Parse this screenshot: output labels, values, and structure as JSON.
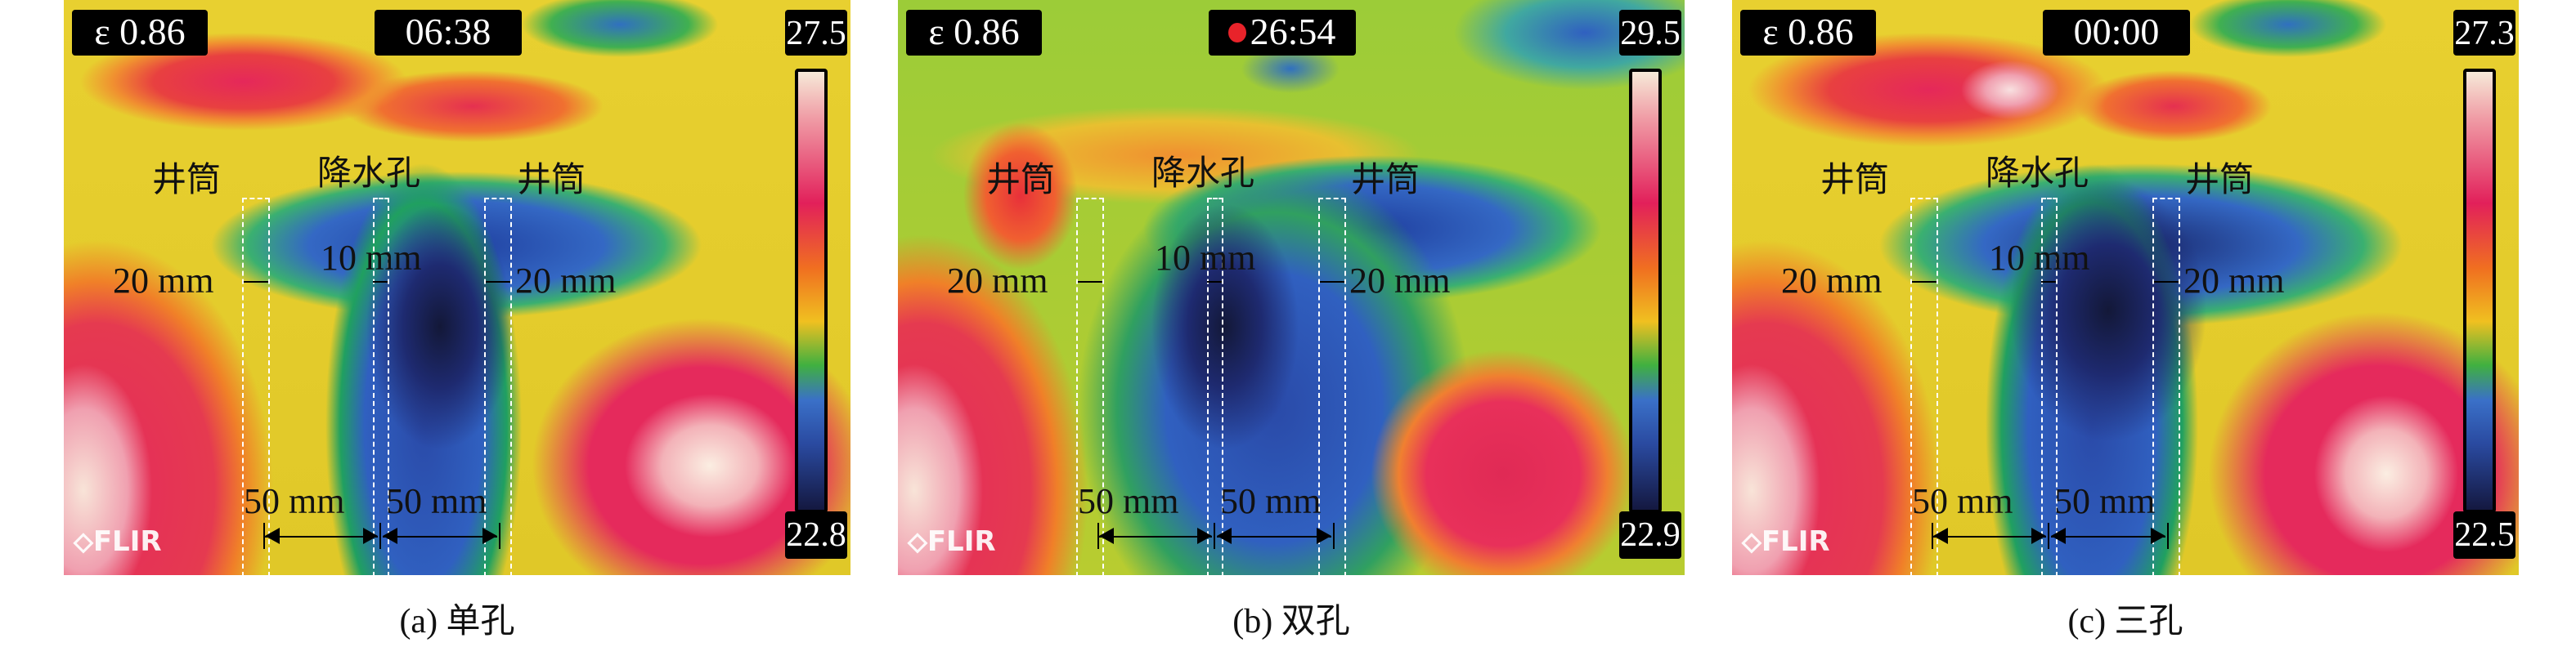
{
  "panels": [
    {
      "epsilon": "ε 0.86",
      "recording": false,
      "time": "06:38",
      "max_temp": "27.5",
      "min_temp": "22.8",
      "logo": "FLIR",
      "labels": {
        "well_left": "井筒",
        "drain_hole": "降水孔",
        "well_right": "井筒"
      },
      "dims": {
        "left_width": "20 mm",
        "center_width": "10 mm",
        "right_width": "20 mm",
        "spacing_left": "50 mm",
        "spacing_right": "50 mm"
      },
      "caption": "(a) 单孔"
    },
    {
      "epsilon": "ε 0.86",
      "recording": true,
      "time": "26:54",
      "max_temp": "29.5",
      "min_temp": "22.9",
      "logo": "FLIR",
      "labels": {
        "well_left": "井筒",
        "drain_hole": "降水孔",
        "well_right": "井筒"
      },
      "dims": {
        "left_width": "20 mm",
        "center_width": "10 mm",
        "right_width": "20 mm",
        "spacing_left": "50 mm",
        "spacing_right": "50 mm"
      },
      "caption": "(b) 双孔"
    },
    {
      "epsilon": "ε 0.86",
      "recording": false,
      "time": "00:00",
      "max_temp": "27.3",
      "min_temp": "22.5",
      "logo": "FLIR",
      "labels": {
        "well_left": "井筒",
        "drain_hole": "降水孔",
        "well_right": "井筒"
      },
      "dims": {
        "left_width": "20 mm",
        "center_width": "10 mm",
        "right_width": "20 mm",
        "spacing_left": "50 mm",
        "spacing_right": "50 mm"
      },
      "caption": "(c) 三孔"
    }
  ],
  "colors": {
    "recording_dot": "#e8232a",
    "palette": "iron-rainbow"
  }
}
